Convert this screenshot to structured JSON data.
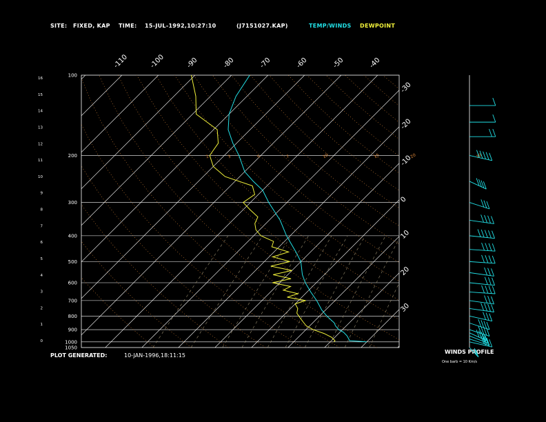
{
  "header": {
    "site_label": "SITE:",
    "site_value": "FIXED, KAP",
    "time_label": "TIME:",
    "time_value": "15-JUL-1992,10:27:10",
    "file_value": "(J7151027.KAP)",
    "temp_legend": "TEMP/WINDS",
    "dew_legend": "DEWPOINT"
  },
  "footer": {
    "generated_label": "PLOT GENERATED:",
    "generated_value": "10-JAN-1996,18:11:15",
    "winds_title": "WINDS PROFILE",
    "winds_note": "One barb = 10 Km/s"
  },
  "colors": {
    "temp": "#22e0e6",
    "dewpoint": "#f2f23a",
    "grid": "#ffffff",
    "mixing_ratio": "#e08a3a",
    "background": "#000000"
  },
  "chart_data": {
    "type": "line",
    "pressure_levels": [
      "100",
      "200",
      "300",
      "400",
      "500",
      "600",
      "700",
      "800",
      "900",
      "1000",
      "1050"
    ],
    "pressure_values": [
      100,
      200,
      300,
      400,
      500,
      600,
      700,
      800,
      900,
      1000,
      1050
    ],
    "height_labels": [
      "16",
      "15",
      "14",
      "13",
      "12",
      "11",
      "10",
      "9",
      "8",
      "7",
      "6",
      "5",
      "4",
      "3",
      "2",
      "1",
      "0"
    ],
    "isotherm_labels_top": [
      "-110",
      "-100",
      "-90",
      "-80",
      "-70",
      "-60",
      "-50",
      "-40"
    ],
    "isotherm_labels_right": [
      "-30",
      "-20",
      "-10",
      "0",
      "10",
      "20",
      "30"
    ],
    "mixing_ratio_labels": [
      "2",
      "3",
      "5",
      "7",
      "10",
      "15",
      "20",
      "30"
    ],
    "temperature": {
      "name": "TEMP/WINDS",
      "p": [
        1000,
        990,
        950,
        920,
        900,
        870,
        850,
        800,
        760,
        700,
        650,
        600,
        560,
        500,
        460,
        400,
        350,
        300,
        270,
        250,
        230,
        200,
        180,
        160,
        140,
        120,
        100
      ],
      "t": [
        30,
        25,
        23,
        21,
        19,
        17,
        16,
        12,
        9,
        5,
        1,
        -3,
        -6,
        -10,
        -14,
        -21,
        -27,
        -35,
        -40,
        -45,
        -50,
        -56,
        -61,
        -66,
        -70,
        -73,
        -75
      ]
    },
    "dewpoint": {
      "name": "DEWPOINT",
      "p": [
        1000,
        990,
        960,
        930,
        900,
        870,
        840,
        810,
        780,
        750,
        720,
        700,
        680,
        660,
        640,
        620,
        600,
        580,
        560,
        540,
        520,
        500,
        480,
        460,
        440,
        420,
        400,
        380,
        360,
        340,
        320,
        300,
        280,
        260,
        240,
        220,
        200,
        180,
        160,
        140,
        120,
        100
      ],
      "td": [
        21,
        21,
        19,
        16,
        12,
        9,
        7,
        5,
        3,
        2,
        0,
        2,
        -4,
        -2,
        -7,
        -6,
        -12,
        -8,
        -14,
        -10,
        -17,
        -13,
        -19,
        -16,
        -22,
        -23,
        -28,
        -31,
        -33,
        -34,
        -38,
        -42,
        -41,
        -44,
        -54,
        -60,
        -64,
        -65,
        -69,
        -79,
        -84,
        -91
      ]
    },
    "winds": {
      "name": "WINDS PROFILE",
      "p": [
        1050,
        1000,
        975,
        950,
        925,
        900,
        850,
        800,
        750,
        700,
        650,
        600,
        550,
        500,
        450,
        400,
        350,
        300,
        250,
        200,
        170,
        150,
        130
      ],
      "speed_barbs": [
        2,
        3,
        3,
        2,
        4,
        4,
        4,
        3,
        4,
        3,
        4,
        3,
        3,
        4,
        4,
        5,
        4,
        3,
        4,
        5,
        2,
        1,
        1
      ],
      "dir_deg": [
        200,
        240,
        230,
        225,
        220,
        230,
        230,
        240,
        250,
        250,
        260,
        255,
        250,
        260,
        260,
        255,
        250,
        230,
        220,
        240,
        270,
        270,
        270
      ]
    },
    "ylim": [
      1050,
      100
    ],
    "xlim_surface": [
      -40,
      35
    ]
  }
}
